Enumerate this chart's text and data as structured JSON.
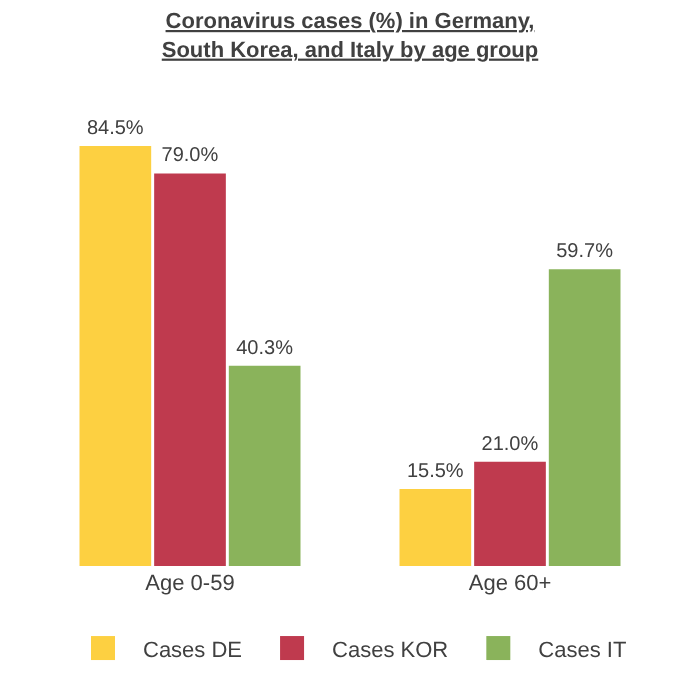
{
  "chart_data": {
    "type": "bar",
    "title": "Coronavirus cases (%) in Germany, South Korea, and Italy by age group",
    "categories": [
      "Age 0-59",
      "Age 60+"
    ],
    "series": [
      {
        "name": "Cases DE",
        "color": "#fdd041",
        "values": [
          84.5,
          15.5
        ],
        "value_labels": [
          "84.5%",
          "15.5%"
        ]
      },
      {
        "name": "Cases KOR",
        "color": "#bf3a4e",
        "values": [
          79.0,
          21.0
        ],
        "value_labels": [
          "79.0%",
          "21.0%"
        ]
      },
      {
        "name": "Cases IT",
        "color": "#8ab35b",
        "values": [
          40.3,
          59.7
        ],
        "value_labels": [
          "40.3%",
          "59.7%"
        ]
      }
    ],
    "tick_labels": "x",
    "grid": false,
    "legend": "bottom"
  }
}
